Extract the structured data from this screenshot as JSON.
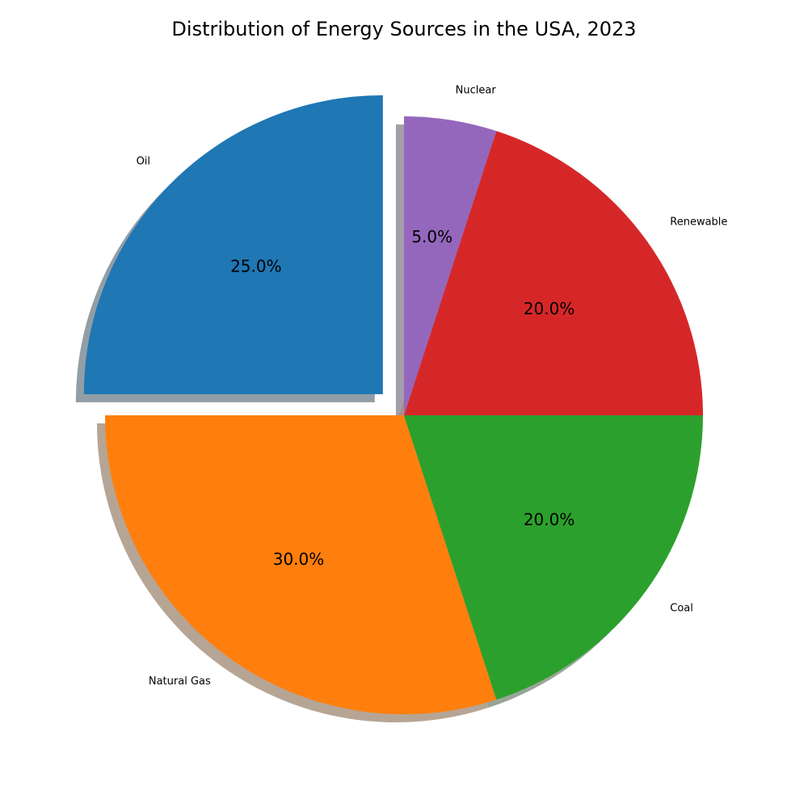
{
  "chart_data": {
    "type": "pie",
    "title": "Distribution of Energy Sources in the USA, 2023",
    "slices": [
      {
        "label": "Oil",
        "value": 25.0,
        "pct_label": "25.0%",
        "color": "#1f77b4",
        "exploded": true
      },
      {
        "label": "Natural Gas",
        "value": 30.0,
        "pct_label": "30.0%",
        "color": "#ff7f0e",
        "exploded": false
      },
      {
        "label": "Coal",
        "value": 20.0,
        "pct_label": "20.0%",
        "color": "#2ca02c",
        "exploded": false
      },
      {
        "label": "Renewable",
        "value": 20.0,
        "pct_label": "20.0%",
        "color": "#d62728",
        "exploded": false
      },
      {
        "label": "Nuclear",
        "value": 5.0,
        "pct_label": "5.0%",
        "color": "#9467bd",
        "exploded": false
      }
    ],
    "start_angle_deg": 90,
    "direction": "counterclockwise",
    "shadow": true
  }
}
